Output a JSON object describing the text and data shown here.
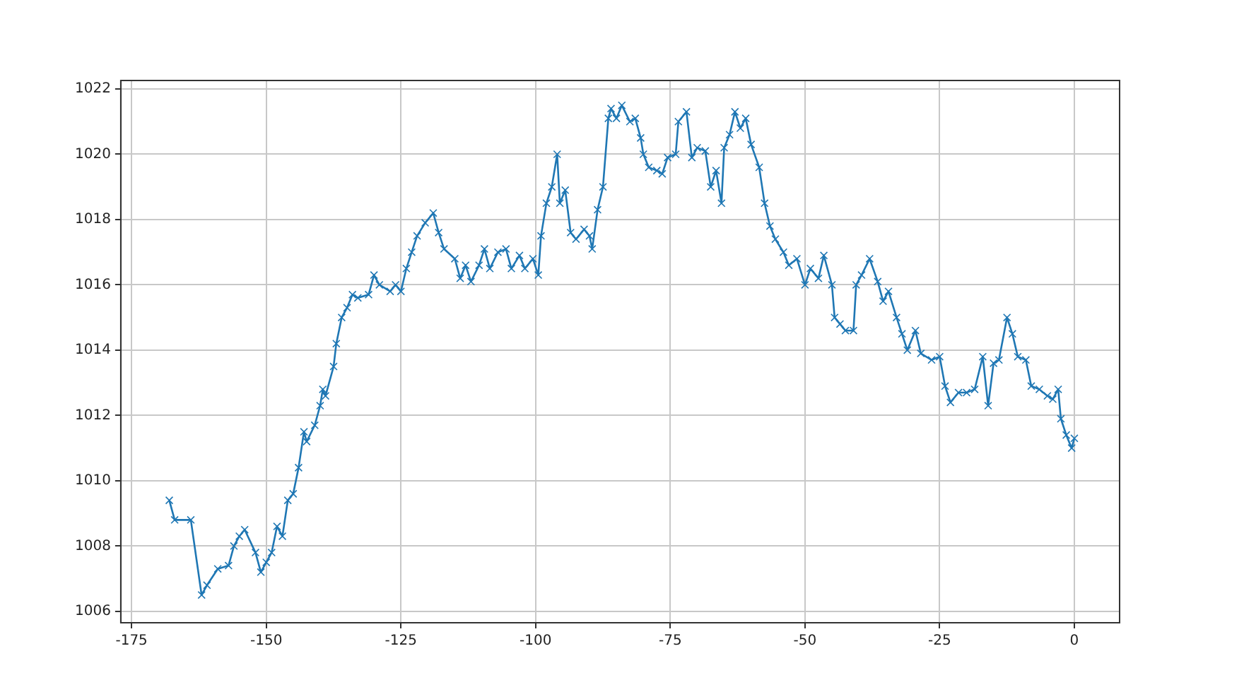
{
  "chart_data": {
    "type": "line",
    "marker": "cross",
    "grid": true,
    "legend": false,
    "xlim": [
      -177,
      8.4
    ],
    "ylim": [
      1005.65,
      1022.26
    ],
    "xticks": [
      -175,
      -150,
      -125,
      -100,
      -75,
      -50,
      -25,
      0
    ],
    "yticks": [
      1006,
      1008,
      1010,
      1012,
      1014,
      1016,
      1018,
      1020,
      1022
    ],
    "series": [
      {
        "color": "#1f77b4",
        "x": [
          -168,
          -167,
          -164,
          -162,
          -161,
          -159,
          -157,
          -156,
          -155,
          -154,
          -152,
          -151,
          -150,
          -149,
          -148,
          -147,
          -146,
          -145,
          -144,
          -143,
          -142.5,
          -141,
          -140,
          -139.5,
          -139,
          -137.5,
          -137,
          -136,
          -135,
          -134,
          -133,
          -131,
          -130,
          -129,
          -127,
          -126,
          -125,
          -124,
          -123,
          -122,
          -120.5,
          -119,
          -118,
          -117,
          -115,
          -114,
          -113,
          -112,
          -110.5,
          -109.5,
          -108.5,
          -107,
          -105.5,
          -104.5,
          -103,
          -102,
          -100.5,
          -99.5,
          -99,
          -98,
          -97,
          -96,
          -95.5,
          -94.5,
          -93.5,
          -92.5,
          -91,
          -90,
          -89.5,
          -88.5,
          -87.5,
          -86.5,
          -86,
          -85,
          -84,
          -82.5,
          -81.5,
          -80.5,
          -80,
          -79,
          -77.5,
          -76.5,
          -75.5,
          -74,
          -73.5,
          -72,
          -71,
          -70,
          -68.5,
          -67.5,
          -66.5,
          -65.5,
          -65,
          -64,
          -63,
          -62,
          -61,
          -60,
          -58.5,
          -57.5,
          -56.5,
          -55.5,
          -54,
          -53,
          -51.5,
          -50,
          -49,
          -47.5,
          -46.5,
          -45,
          -44.5,
          -43.5,
          -42.5,
          -41,
          -40.5,
          -39.5,
          -38,
          -36.5,
          -35.5,
          -34.5,
          -33,
          -32,
          -31,
          -29.5,
          -28.5,
          -26.5,
          -25,
          -24,
          -23,
          -21.5,
          -20,
          -18.5,
          -17,
          -16,
          -15,
          -14,
          -12.5,
          -11.5,
          -10.5,
          -9,
          -8,
          -6.5,
          -5,
          -4,
          -3,
          -2.5,
          -1.5,
          -0.5,
          0
        ],
        "values": [
          1009.4,
          1008.8,
          1008.8,
          1006.5,
          1006.8,
          1007.3,
          1007.4,
          1008.0,
          1008.3,
          1008.5,
          1007.8,
          1007.2,
          1007.5,
          1007.8,
          1008.6,
          1008.3,
          1009.4,
          1009.6,
          1010.4,
          1011.5,
          1011.2,
          1011.7,
          1012.3,
          1012.8,
          1012.6,
          1013.5,
          1014.2,
          1015.0,
          1015.3,
          1015.7,
          1015.6,
          1015.7,
          1016.3,
          1016.0,
          1015.8,
          1016.0,
          1015.8,
          1016.5,
          1017.0,
          1017.5,
          1017.9,
          1018.2,
          1017.6,
          1017.1,
          1016.8,
          1016.2,
          1016.6,
          1016.1,
          1016.6,
          1017.1,
          1016.5,
          1017.0,
          1017.1,
          1016.5,
          1016.9,
          1016.5,
          1016.8,
          1016.3,
          1017.5,
          1018.5,
          1019.0,
          1020.0,
          1018.5,
          1018.9,
          1017.6,
          1017.4,
          1017.7,
          1017.5,
          1017.1,
          1018.3,
          1019.0,
          1021.1,
          1021.4,
          1021.1,
          1021.5,
          1021.0,
          1021.1,
          1020.5,
          1020.0,
          1019.6,
          1019.5,
          1019.4,
          1019.9,
          1020.0,
          1021.0,
          1021.3,
          1019.9,
          1020.2,
          1020.1,
          1019.0,
          1019.5,
          1018.5,
          1020.2,
          1020.6,
          1021.3,
          1020.8,
          1021.1,
          1020.3,
          1019.6,
          1018.5,
          1017.8,
          1017.4,
          1017.0,
          1016.6,
          1016.8,
          1016.0,
          1016.5,
          1016.2,
          1016.9,
          1016.0,
          1015.0,
          1014.8,
          1014.6,
          1014.6,
          1016.0,
          1016.3,
          1016.8,
          1016.1,
          1015.5,
          1015.8,
          1015.0,
          1014.5,
          1014.0,
          1014.6,
          1013.9,
          1013.7,
          1013.8,
          1012.9,
          1012.4,
          1012.7,
          1012.7,
          1012.8,
          1013.8,
          1012.3,
          1013.6,
          1013.7,
          1015.0,
          1014.5,
          1013.8,
          1013.7,
          1012.9,
          1012.8,
          1012.6,
          1012.5,
          1012.8,
          1011.9,
          1011.4,
          1011.0,
          1011.3
        ]
      }
    ]
  }
}
